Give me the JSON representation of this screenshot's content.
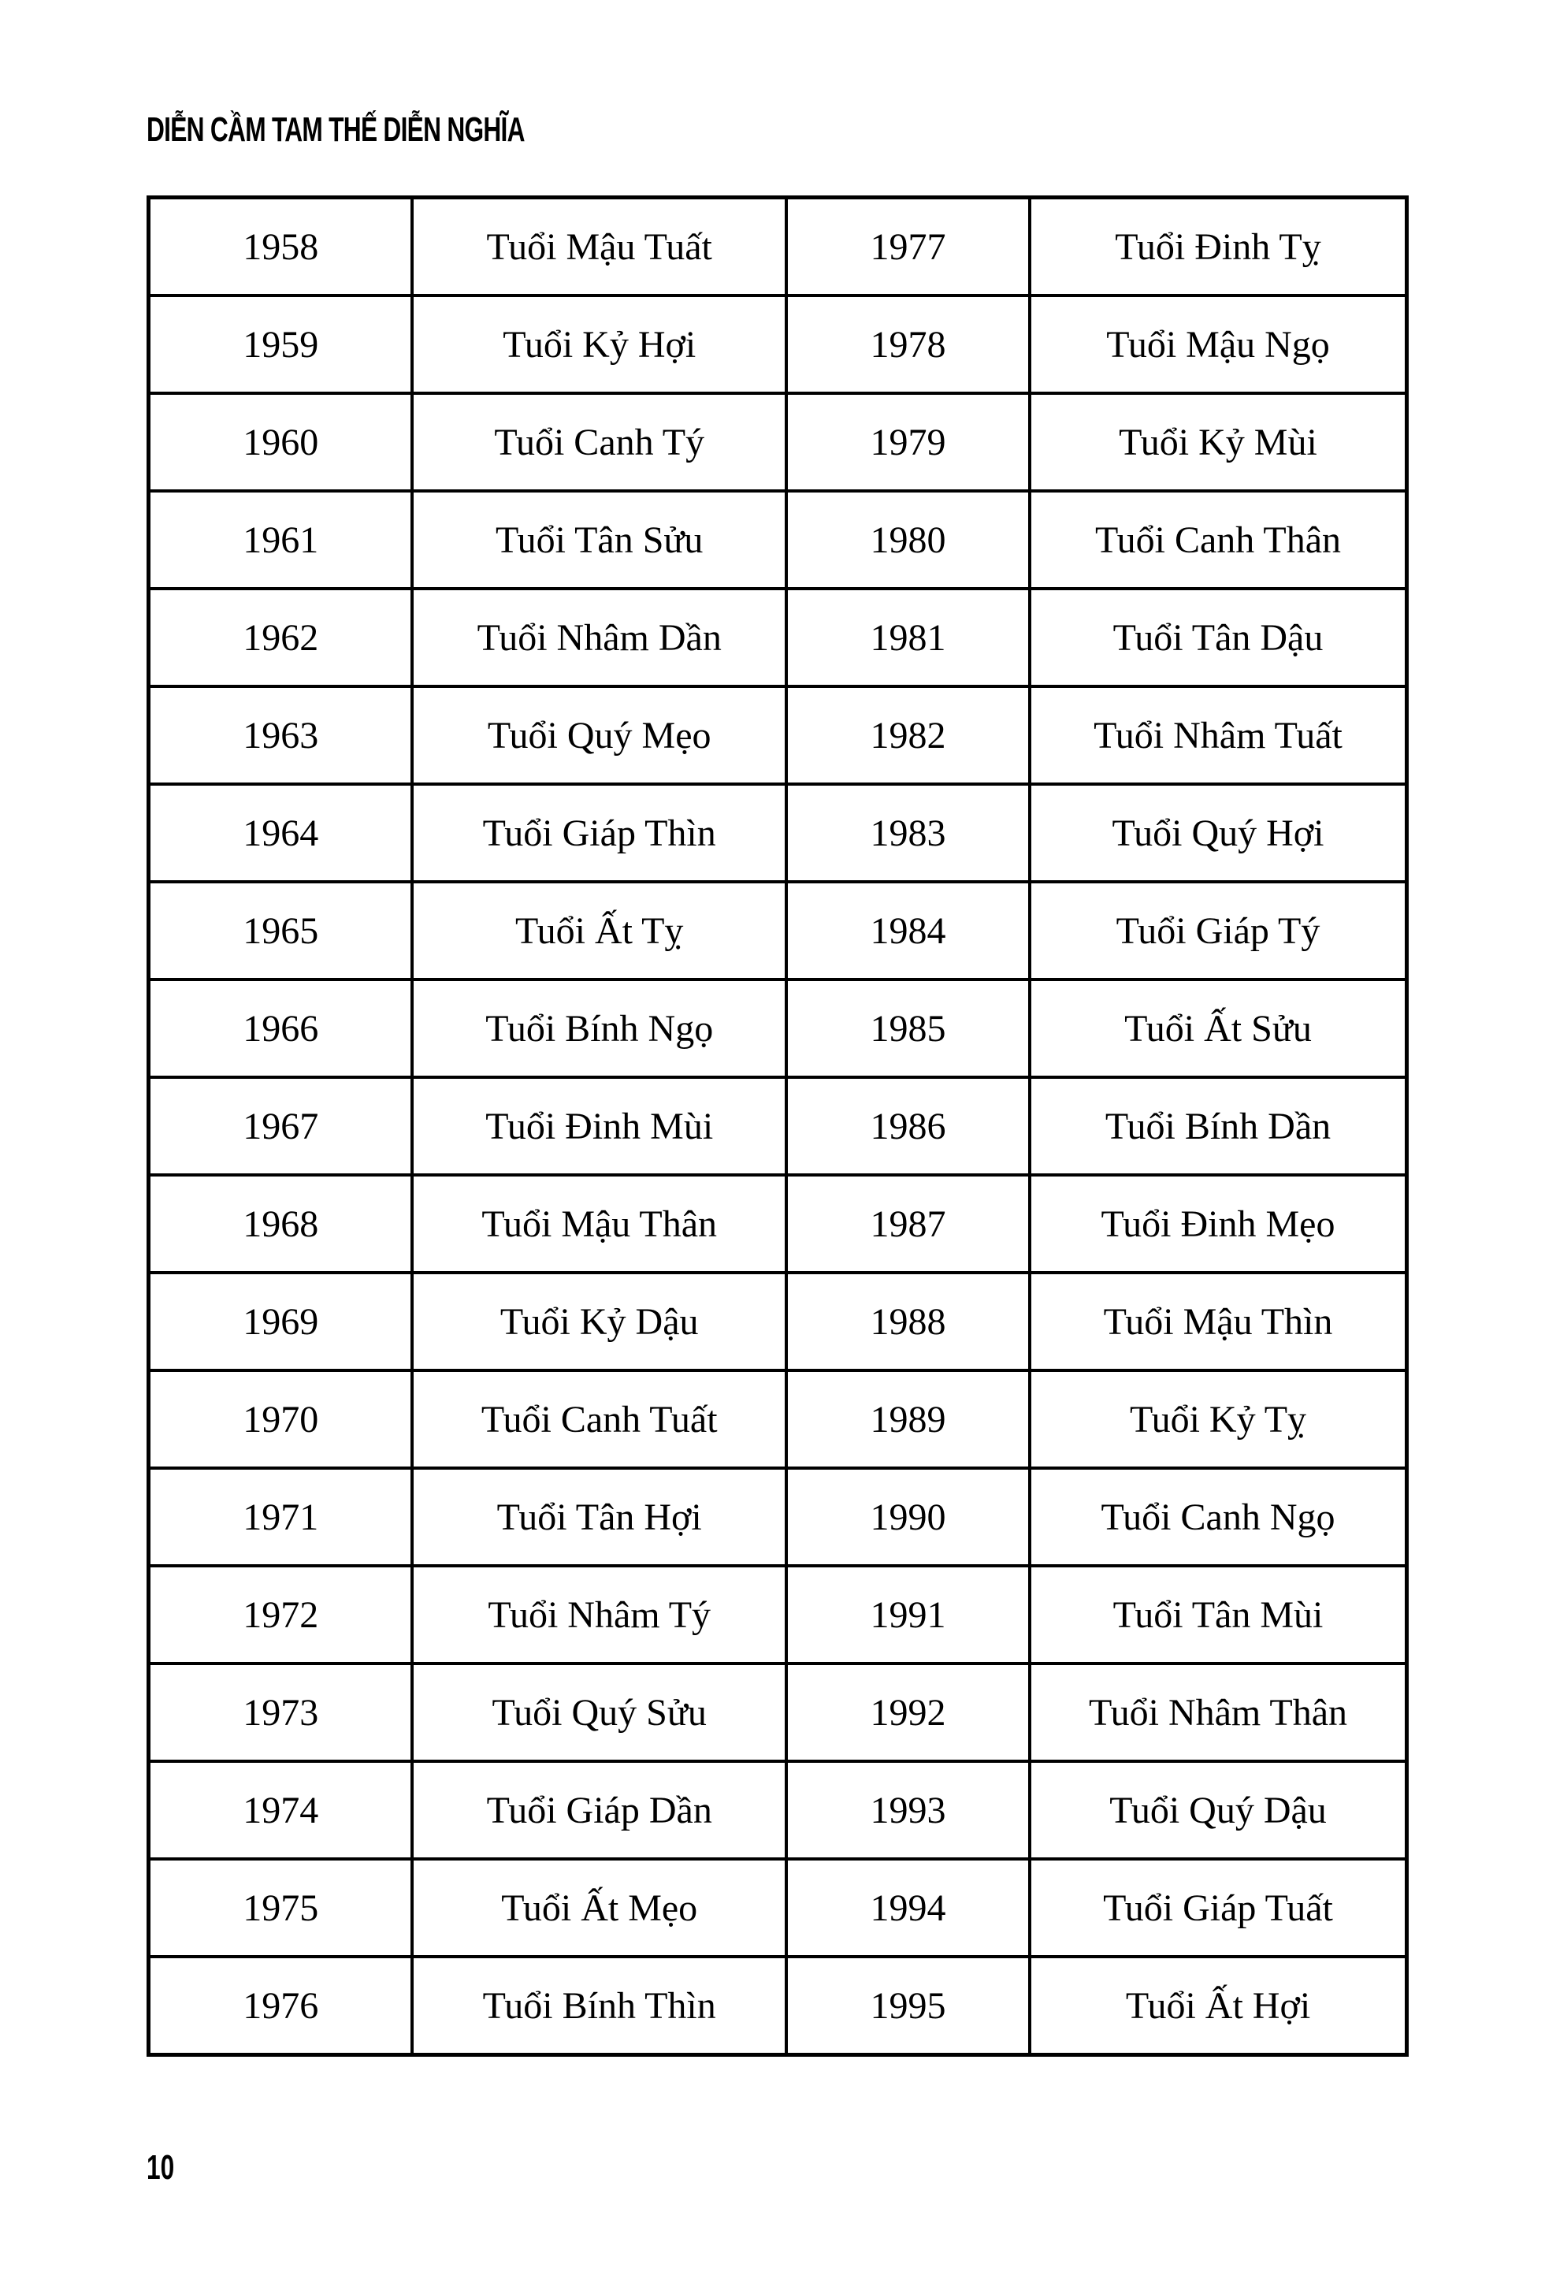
{
  "header": {
    "title": "DIỄN CẦM TAM THẾ DIỄN NGHĨA"
  },
  "table": {
    "rows": [
      [
        "1958",
        "Tuổi Mậu Tuất",
        "1977",
        "Tuổi Đinh Tỵ"
      ],
      [
        "1959",
        "Tuổi Kỷ Hợi",
        "1978",
        "Tuổi Mậu Ngọ"
      ],
      [
        "1960",
        "Tuổi Canh Tý",
        "1979",
        "Tuổi Kỷ Mùi"
      ],
      [
        "1961",
        "Tuổi Tân Sửu",
        "1980",
        "Tuổi Canh Thân"
      ],
      [
        "1962",
        "Tuổi Nhâm Dần",
        "1981",
        "Tuổi Tân Dậu"
      ],
      [
        "1963",
        "Tuổi Quý Mẹo",
        "1982",
        "Tuổi Nhâm Tuất"
      ],
      [
        "1964",
        "Tuổi Giáp Thìn",
        "1983",
        "Tuổi Quý Hợi"
      ],
      [
        "1965",
        "Tuổi Ất Tỵ",
        "1984",
        "Tuổi Giáp Tý"
      ],
      [
        "1966",
        "Tuổi Bính Ngọ",
        "1985",
        "Tuổi Ất Sửu"
      ],
      [
        "1967",
        "Tuổi Đinh Mùi",
        "1986",
        "Tuổi Bính Dần"
      ],
      [
        "1968",
        "Tuổi Mậu Thân",
        "1987",
        "Tuổi Đinh Mẹo"
      ],
      [
        "1969",
        "Tuổi Kỷ Dậu",
        "1988",
        "Tuổi Mậu Thìn"
      ],
      [
        "1970",
        "Tuổi Canh Tuất",
        "1989",
        "Tuổi Kỷ Tỵ"
      ],
      [
        "1971",
        "Tuổi Tân Hợi",
        "1990",
        "Tuổi Canh Ngọ"
      ],
      [
        "1972",
        "Tuổi Nhâm Tý",
        "1991",
        "Tuổi Tân Mùi"
      ],
      [
        "1973",
        "Tuổi Quý Sửu",
        "1992",
        "Tuổi Nhâm Thân"
      ],
      [
        "1974",
        "Tuổi Giáp Dần",
        "1993",
        "Tuổi Quý Dậu"
      ],
      [
        "1975",
        "Tuổi Ất Mẹo",
        "1994",
        "Tuổi Giáp Tuất"
      ],
      [
        "1976",
        "Tuổi Bính Thìn",
        "1995",
        "Tuổi Ất Hợi"
      ]
    ]
  },
  "footer": {
    "page_number": "10"
  }
}
